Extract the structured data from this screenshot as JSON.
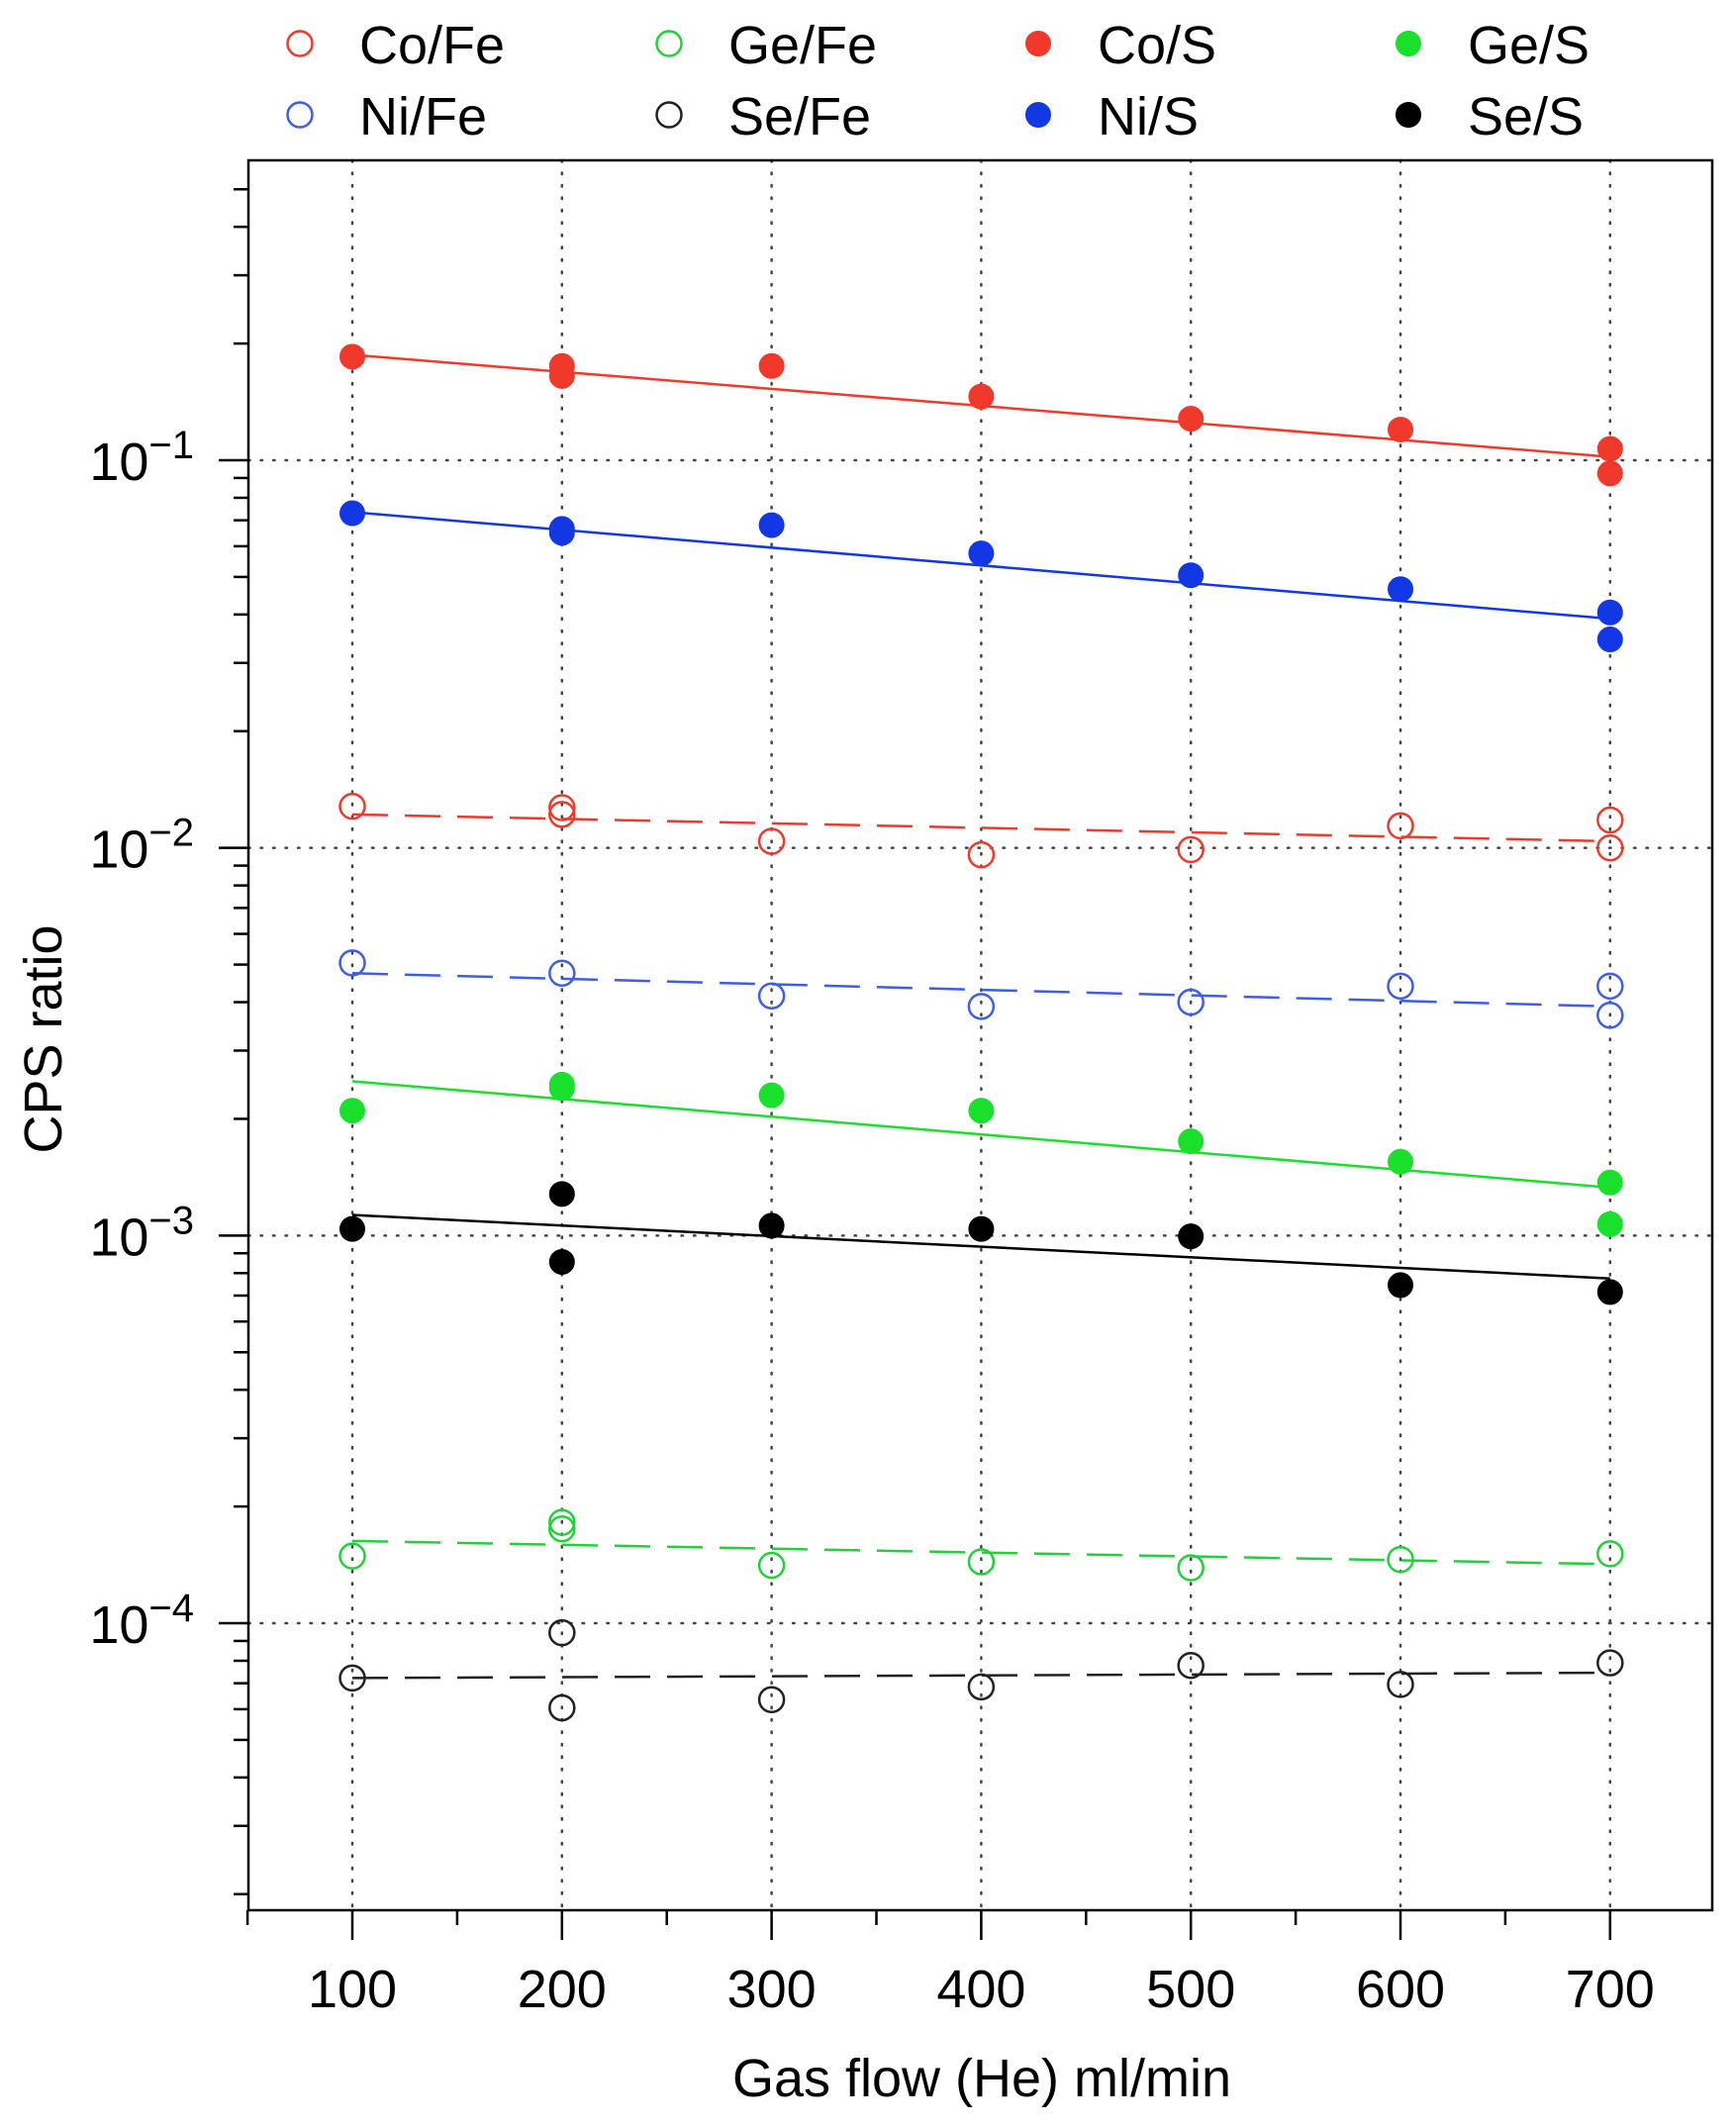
{
  "chart_data": {
    "type": "scatter",
    "title": "",
    "xlabel": "Gas flow (He) ml/min",
    "ylabel": "CPS ratio",
    "xscale": "linear",
    "yscale": "log",
    "xlim": [
      50,
      750
    ],
    "ylim": [
      2e-05,
      0.6
    ],
    "x_ticks": [
      100,
      200,
      300,
      400,
      500,
      600,
      700
    ],
    "x_tick_labels": [
      "100",
      "200",
      "300",
      "400",
      "500",
      "600",
      "700"
    ],
    "y_major_ticks": [
      {
        "value": 0.1,
        "base": "10",
        "exp": "−1"
      },
      {
        "value": 0.01,
        "base": "10",
        "exp": "−2"
      },
      {
        "value": 0.001,
        "base": "10",
        "exp": "−3"
      },
      {
        "value": 0.0001,
        "base": "10",
        "exp": "−4"
      }
    ],
    "grid": "dotted at x ticks and y decades",
    "legend_position": "top",
    "series": [
      {
        "name": "Co/Fe",
        "color": "#f0392b",
        "marker": "open-circle",
        "fit": "dashed",
        "x": [
          100,
          200,
          200,
          300,
          400,
          500,
          600,
          700,
          700
        ],
        "y": [
          0.0128,
          0.0127,
          0.0122,
          0.0104,
          0.0096,
          0.0099,
          0.0114,
          0.0118,
          0.01
        ],
        "fit_start": [
          100,
          0.0122
        ],
        "fit_end": [
          700,
          0.0104
        ]
      },
      {
        "name": "Ni/Fe",
        "color": "#3f5ee3",
        "marker": "open-circle",
        "fit": "dashed",
        "x": [
          100,
          200,
          300,
          400,
          500,
          600,
          700,
          700
        ],
        "y": [
          0.00505,
          0.00475,
          0.00415,
          0.0039,
          0.004,
          0.0044,
          0.0044,
          0.0037
        ],
        "fit_start": [
          100,
          0.00475
        ],
        "fit_end": [
          700,
          0.0039
        ]
      },
      {
        "name": "Ge/Fe",
        "color": "#22d13a",
        "marker": "open-circle",
        "fit": "dashed",
        "x": [
          100,
          200,
          200,
          300,
          400,
          500,
          600,
          700
        ],
        "y": [
          0.000149,
          0.000182,
          0.000175,
          0.000141,
          0.000144,
          0.000139,
          0.000146,
          0.000151
        ],
        "fit_start": [
          100,
          0.000163
        ],
        "fit_end": [
          700,
          0.000142
        ]
      },
      {
        "name": "Se/Fe",
        "color": "#222222",
        "marker": "open-circle",
        "fit": "dashed",
        "x": [
          100,
          200,
          200,
          300,
          400,
          500,
          600,
          700
        ],
        "y": [
          7.22e-05,
          9.45e-05,
          6.05e-05,
          6.35e-05,
          6.85e-05,
          7.78e-05,
          6.95e-05,
          7.9e-05
        ],
        "fit_start": [
          100,
          7.22e-05
        ],
        "fit_end": [
          700,
          7.45e-05
        ]
      },
      {
        "name": "Co/S",
        "color": "#f0392b",
        "marker": "filled-circle",
        "fit": "solid",
        "x": [
          100,
          200,
          200,
          300,
          400,
          500,
          600,
          700,
          700
        ],
        "y": [
          0.185,
          0.175,
          0.165,
          0.175,
          0.146,
          0.128,
          0.12,
          0.107,
          0.0925
        ],
        "fit_start": [
          100,
          0.187
        ],
        "fit_end": [
          700,
          0.102
        ]
      },
      {
        "name": "Ni/S",
        "color": "#1238e6",
        "marker": "filled-circle",
        "fit": "solid",
        "x": [
          100,
          200,
          200,
          300,
          400,
          500,
          600,
          700,
          700
        ],
        "y": [
          0.073,
          0.0665,
          0.065,
          0.068,
          0.0575,
          0.0505,
          0.0465,
          0.0405,
          0.0345
        ],
        "fit_start": [
          100,
          0.0735
        ],
        "fit_end": [
          700,
          0.039
        ]
      },
      {
        "name": "Ge/S",
        "color": "#19e02a",
        "marker": "filled-circle",
        "fit": "solid",
        "x": [
          100,
          200,
          200,
          300,
          400,
          500,
          600,
          700,
          700
        ],
        "y": [
          0.0021,
          0.00245,
          0.0024,
          0.0023,
          0.0021,
          0.00175,
          0.00155,
          0.00137,
          0.00107
        ],
        "fit_start": [
          100,
          0.0025
        ],
        "fit_end": [
          700,
          0.00133
        ]
      },
      {
        "name": "Se/S",
        "color": "#000000",
        "marker": "filled-circle",
        "fit": "solid",
        "x": [
          100,
          200,
          200,
          300,
          400,
          500,
          600,
          700
        ],
        "y": [
          0.00104,
          0.00128,
          0.000855,
          0.00106,
          0.00104,
          0.000995,
          0.000745,
          0.000715
        ],
        "fit_start": [
          100,
          0.00113
        ],
        "fit_end": [
          700,
          0.000775
        ]
      }
    ]
  }
}
